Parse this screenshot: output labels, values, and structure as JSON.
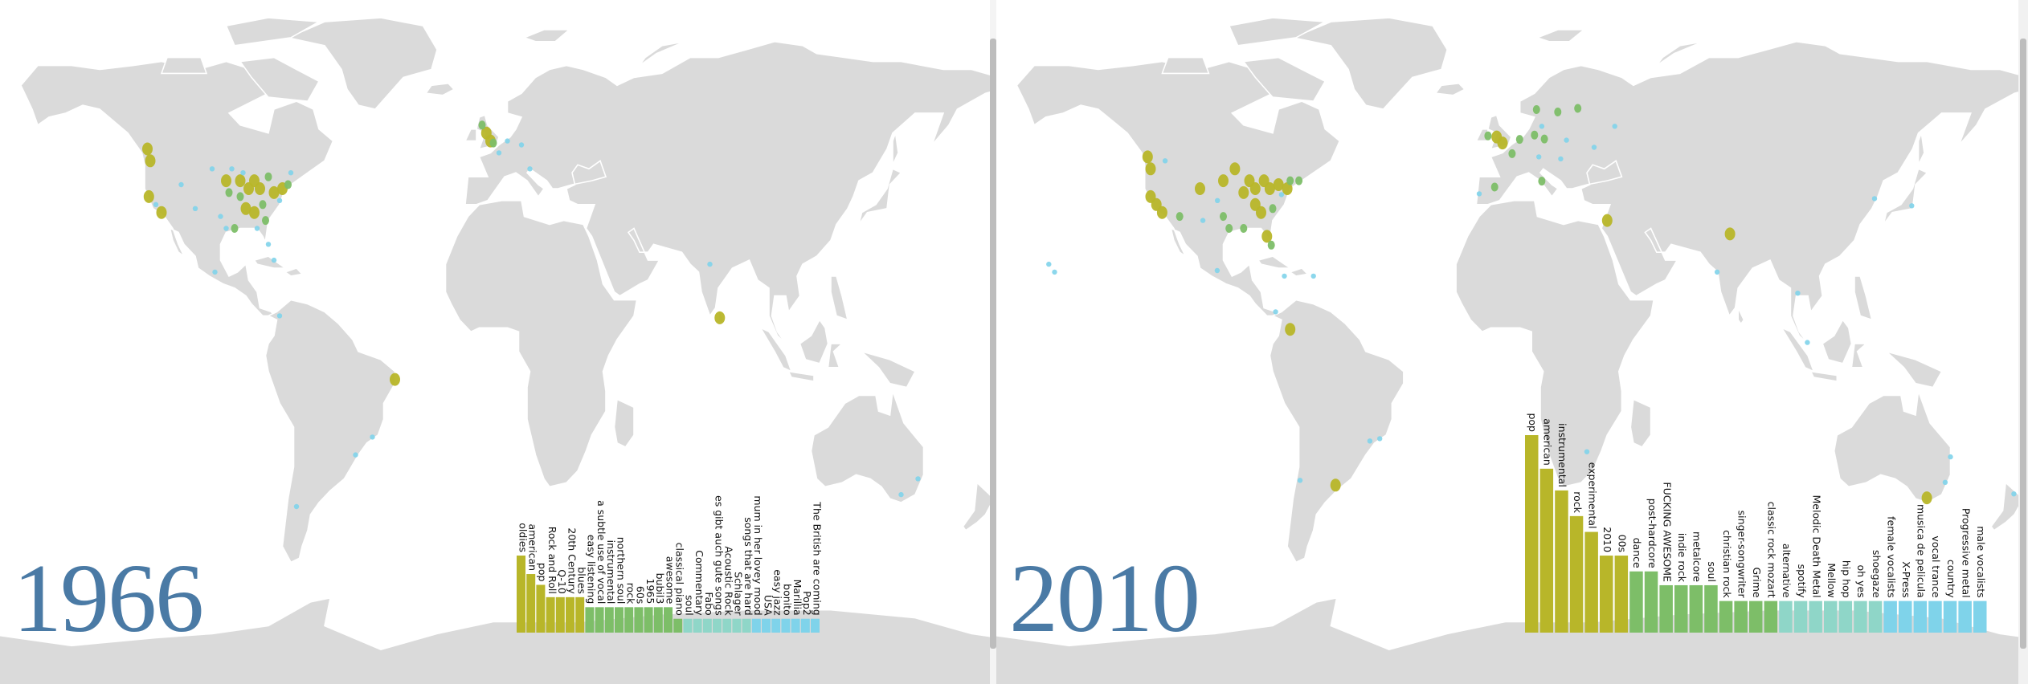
{
  "colors": {
    "land": "#dadada",
    "border": "#ffffff",
    "year": "#4a7aa5",
    "olive": "#b8b629",
    "green": "#7dbe68",
    "teal": "#8fd6c8",
    "cyan": "#7fd3ea"
  },
  "panels": [
    {
      "year": "1966",
      "tags": [
        {
          "label": "oldies",
          "value": 10
        },
        {
          "label": "american",
          "value": 7.6
        },
        {
          "label": "pop",
          "value": 6.2
        },
        {
          "label": "Rock and Roll",
          "value": 4.6
        },
        {
          "label": "Q-10",
          "value": 4.6
        },
        {
          "label": "20th Century",
          "value": 4.6
        },
        {
          "label": "blues",
          "value": 4.6
        },
        {
          "label": "easy listening",
          "value": 3.3
        },
        {
          "label": "a subtle use of vocal",
          "value": 3.3
        },
        {
          "label": "instrumental",
          "value": 3.3
        },
        {
          "label": "northern soul",
          "value": 3.3
        },
        {
          "label": "rock",
          "value": 3.3
        },
        {
          "label": "60s",
          "value": 3.3
        },
        {
          "label": "1965",
          "value": 3.3
        },
        {
          "label": "bubil3",
          "value": 3.3
        },
        {
          "label": "awesome",
          "value": 3.3
        },
        {
          "label": "classical piano",
          "value": 1.8
        },
        {
          "label": "soul",
          "value": 1.8
        },
        {
          "label": "Commentary",
          "value": 1.8
        },
        {
          "label": "Fabo",
          "value": 1.8
        },
        {
          "label": "es gibt auch gute songs",
          "value": 1.8
        },
        {
          "label": "Acoustic Rock",
          "value": 1.8
        },
        {
          "label": "Schlager",
          "value": 1.8
        },
        {
          "label": "songs that are hard",
          "value": 1.8
        },
        {
          "label": "mum in her lovey mood",
          "value": 1.8
        },
        {
          "label": "USA",
          "value": 1.8
        },
        {
          "label": "easy jazz",
          "value": 1.8
        },
        {
          "label": "bonito",
          "value": 1.8
        },
        {
          "label": "Marillia",
          "value": 1.8
        },
        {
          "label": "Pop2",
          "value": 1.8
        },
        {
          "label": "The British are coming",
          "value": 1.8
        }
      ],
      "markers": [
        {
          "lon": -123,
          "lat": 50,
          "size": "l"
        },
        {
          "lon": -122,
          "lat": 47,
          "size": "l"
        },
        {
          "lon": -122.5,
          "lat": 38,
          "size": "l"
        },
        {
          "lon": -118,
          "lat": 34,
          "size": "l"
        },
        {
          "lon": -120,
          "lat": 36,
          "size": "s"
        },
        {
          "lon": -95,
          "lat": 42,
          "size": "l"
        },
        {
          "lon": -94,
          "lat": 39,
          "size": "m"
        },
        {
          "lon": -90,
          "lat": 42,
          "size": "l"
        },
        {
          "lon": -87,
          "lat": 40,
          "size": "l"
        },
        {
          "lon": -85,
          "lat": 42,
          "size": "l"
        },
        {
          "lon": -83,
          "lat": 40,
          "size": "l"
        },
        {
          "lon": -80,
          "lat": 43,
          "size": "m"
        },
        {
          "lon": -78,
          "lat": 39,
          "size": "l"
        },
        {
          "lon": -75,
          "lat": 40,
          "size": "l"
        },
        {
          "lon": -73,
          "lat": 41,
          "size": "m"
        },
        {
          "lon": -88,
          "lat": 35,
          "size": "l"
        },
        {
          "lon": -85,
          "lat": 34,
          "size": "l"
        },
        {
          "lon": -92,
          "lat": 30,
          "size": "m"
        },
        {
          "lon": -81,
          "lat": 32,
          "size": "m"
        },
        {
          "lon": -90,
          "lat": 38,
          "size": "m"
        },
        {
          "lon": -97,
          "lat": 33,
          "size": "s"
        },
        {
          "lon": -106,
          "lat": 35,
          "size": "s"
        },
        {
          "lon": -100,
          "lat": 45,
          "size": "s"
        },
        {
          "lon": -82,
          "lat": 36,
          "size": "m"
        },
        {
          "lon": -95,
          "lat": 30,
          "size": "s"
        },
        {
          "lon": -89,
          "lat": 44,
          "size": "s"
        },
        {
          "lon": -76,
          "lat": 37,
          "size": "s"
        },
        {
          "lon": -72,
          "lat": 44,
          "size": "s"
        },
        {
          "lon": -84,
          "lat": 30,
          "size": "s"
        },
        {
          "lon": -80,
          "lat": 26,
          "size": "s"
        },
        {
          "lon": -93,
          "lat": 45,
          "size": "s"
        },
        {
          "lon": -111,
          "lat": 41,
          "size": "s"
        },
        {
          "lon": -78,
          "lat": 22,
          "size": "s"
        },
        {
          "lon": -99,
          "lat": 19,
          "size": "s"
        },
        {
          "lon": -2.5,
          "lat": 54,
          "size": "l"
        },
        {
          "lon": -1,
          "lat": 52,
          "size": "l"
        },
        {
          "lon": 0,
          "lat": 51.5,
          "size": "m"
        },
        {
          "lon": -4,
          "lat": 56,
          "size": "m"
        },
        {
          "lon": 2,
          "lat": 49,
          "size": "s"
        },
        {
          "lon": 5,
          "lat": 52,
          "size": "s"
        },
        {
          "lon": 10,
          "lat": 51,
          "size": "s"
        },
        {
          "lon": 13,
          "lat": 45,
          "size": "s"
        },
        {
          "lon": 80.5,
          "lat": 7.5,
          "size": "l"
        },
        {
          "lon": 77,
          "lat": 21,
          "size": "s"
        },
        {
          "lon": -35,
          "lat": -8,
          "size": "l"
        },
        {
          "lon": -43,
          "lat": -22.5,
          "size": "s"
        },
        {
          "lon": -49,
          "lat": -27,
          "size": "s"
        },
        {
          "lon": -70,
          "lat": -40,
          "size": "s"
        },
        {
          "lon": -76,
          "lat": 8,
          "size": "s"
        },
        {
          "lon": 151,
          "lat": -33,
          "size": "s"
        },
        {
          "lon": 145,
          "lat": -37,
          "size": "s"
        }
      ]
    },
    {
      "year": "2010",
      "tags": [
        {
          "label": "pop",
          "value": 10
        },
        {
          "label": "american",
          "value": 8.3
        },
        {
          "label": "instrumental",
          "value": 7.2
        },
        {
          "label": "rock",
          "value": 5.9
        },
        {
          "label": "experimental",
          "value": 5.1
        },
        {
          "label": "2010",
          "value": 3.9
        },
        {
          "label": "00s",
          "value": 3.9
        },
        {
          "label": "dance",
          "value": 3.1
        },
        {
          "label": "post-hardcore",
          "value": 3.1
        },
        {
          "label": "FUCKING AWESOME",
          "value": 2.4
        },
        {
          "label": "indie rock",
          "value": 2.4
        },
        {
          "label": "metalcore",
          "value": 2.4
        },
        {
          "label": "soul",
          "value": 2.4
        },
        {
          "label": "christian rock",
          "value": 1.6
        },
        {
          "label": "singer-songwriter",
          "value": 1.6
        },
        {
          "label": "Grime",
          "value": 1.6
        },
        {
          "label": "classic rock mozart",
          "value": 1.6
        },
        {
          "label": "alternative",
          "value": 1.6
        },
        {
          "label": "spotify",
          "value": 1.6
        },
        {
          "label": "Melodic Death Metal",
          "value": 1.6
        },
        {
          "label": "Mellow",
          "value": 1.6
        },
        {
          "label": "hip hop",
          "value": 1.6
        },
        {
          "label": "oh yes",
          "value": 1.6
        },
        {
          "label": "shoegaze",
          "value": 1.6
        },
        {
          "label": "female vocalists",
          "value": 1.6
        },
        {
          "label": "X-Press",
          "value": 1.6
        },
        {
          "label": "musica de pelicula",
          "value": 1.6
        },
        {
          "label": "vocal trance",
          "value": 1.6
        },
        {
          "label": "country",
          "value": 1.6
        },
        {
          "label": "Progressive metal",
          "value": 1.6
        },
        {
          "label": "male vocalists",
          "value": 1.6
        }
      ],
      "markers": [
        {
          "lon": -123,
          "lat": 48,
          "size": "l"
        },
        {
          "lon": -122,
          "lat": 45,
          "size": "l"
        },
        {
          "lon": -122,
          "lat": 38,
          "size": "l"
        },
        {
          "lon": -120,
          "lat": 36,
          "size": "l"
        },
        {
          "lon": -118,
          "lat": 34,
          "size": "l"
        },
        {
          "lon": -112,
          "lat": 33,
          "size": "m"
        },
        {
          "lon": -105,
          "lat": 40,
          "size": "l"
        },
        {
          "lon": -97,
          "lat": 42,
          "size": "l"
        },
        {
          "lon": -93,
          "lat": 45,
          "size": "l"
        },
        {
          "lon": -90,
          "lat": 39,
          "size": "l"
        },
        {
          "lon": -88,
          "lat": 42,
          "size": "l"
        },
        {
          "lon": -86,
          "lat": 40,
          "size": "l"
        },
        {
          "lon": -83,
          "lat": 42,
          "size": "l"
        },
        {
          "lon": -81,
          "lat": 40,
          "size": "l"
        },
        {
          "lon": -78,
          "lat": 41,
          "size": "l"
        },
        {
          "lon": -75,
          "lat": 40,
          "size": "l"
        },
        {
          "lon": -74,
          "lat": 42,
          "size": "m"
        },
        {
          "lon": -71,
          "lat": 42,
          "size": "m"
        },
        {
          "lon": -86,
          "lat": 36,
          "size": "l"
        },
        {
          "lon": -84,
          "lat": 34,
          "size": "l"
        },
        {
          "lon": -80,
          "lat": 35,
          "size": "m"
        },
        {
          "lon": -90,
          "lat": 30,
          "size": "m"
        },
        {
          "lon": -95,
          "lat": 30,
          "size": "m"
        },
        {
          "lon": -97,
          "lat": 33,
          "size": "m"
        },
        {
          "lon": -82,
          "lat": 28,
          "size": "l"
        },
        {
          "lon": -80.5,
          "lat": 25.8,
          "size": "m"
        },
        {
          "lon": -99,
          "lat": 37,
          "size": "s"
        },
        {
          "lon": -77,
          "lat": 38.5,
          "size": "s"
        },
        {
          "lon": -104,
          "lat": 32,
          "size": "s"
        },
        {
          "lon": -117,
          "lat": 47,
          "size": "s"
        },
        {
          "lon": -66,
          "lat": 18,
          "size": "s"
        },
        {
          "lon": -76,
          "lat": 18,
          "size": "s"
        },
        {
          "lon": -79,
          "lat": 9,
          "size": "s"
        },
        {
          "lon": -157,
          "lat": 21,
          "size": "s"
        },
        {
          "lon": -155,
          "lat": 19,
          "size": "s"
        },
        {
          "lon": -74,
          "lat": 4.6,
          "size": "l"
        },
        {
          "lon": -58.4,
          "lat": -34.6,
          "size": "l"
        },
        {
          "lon": -3,
          "lat": 53,
          "size": "l"
        },
        {
          "lon": -1,
          "lat": 51.5,
          "size": "l"
        },
        {
          "lon": -6,
          "lat": 53.3,
          "size": "m"
        },
        {
          "lon": 2.3,
          "lat": 48.8,
          "size": "m"
        },
        {
          "lon": 4.9,
          "lat": 52.4,
          "size": "m"
        },
        {
          "lon": 10,
          "lat": 53.5,
          "size": "m"
        },
        {
          "lon": 13.4,
          "lat": 52.5,
          "size": "m"
        },
        {
          "lon": 11.5,
          "lat": 48,
          "size": "s"
        },
        {
          "lon": 18,
          "lat": 59.3,
          "size": "m"
        },
        {
          "lon": 10.7,
          "lat": 59.9,
          "size": "m"
        },
        {
          "lon": 12.5,
          "lat": 55.7,
          "size": "s"
        },
        {
          "lon": 24.9,
          "lat": 60.2,
          "size": "m"
        },
        {
          "lon": 12.5,
          "lat": 41.9,
          "size": "m"
        },
        {
          "lon": -3.7,
          "lat": 40.4,
          "size": "m"
        },
        {
          "lon": -9,
          "lat": 38.7,
          "size": "s"
        },
        {
          "lon": 21,
          "lat": 52.2,
          "size": "s"
        },
        {
          "lon": 19,
          "lat": 47.5,
          "size": "s"
        },
        {
          "lon": 37.6,
          "lat": 55.7,
          "size": "s"
        },
        {
          "lon": 30.5,
          "lat": 50.4,
          "size": "s"
        },
        {
          "lon": 35,
          "lat": 32,
          "size": "l"
        },
        {
          "lon": 77.2,
          "lat": 28.6,
          "size": "l"
        },
        {
          "lon": 72.8,
          "lat": 19,
          "size": "s"
        },
        {
          "lon": 103.8,
          "lat": 1.3,
          "size": "s"
        },
        {
          "lon": 100.5,
          "lat": 13.7,
          "size": "s"
        },
        {
          "lon": 139.7,
          "lat": 35.7,
          "size": "s"
        },
        {
          "lon": 126.9,
          "lat": 37.5,
          "size": "s"
        },
        {
          "lon": 144.9,
          "lat": -37.8,
          "size": "l"
        },
        {
          "lon": 151.2,
          "lat": -33.9,
          "size": "s"
        },
        {
          "lon": 153,
          "lat": -27.5,
          "size": "s"
        },
        {
          "lon": 174.8,
          "lat": -36.8,
          "size": "s"
        },
        {
          "lon": 28,
          "lat": -26.2,
          "size": "s"
        },
        {
          "lon": -46.6,
          "lat": -23.5,
          "size": "s"
        },
        {
          "lon": -43.2,
          "lat": -22.9,
          "size": "s"
        },
        {
          "lon": -70.6,
          "lat": -33.4,
          "size": "s"
        },
        {
          "lon": -99.1,
          "lat": 19.4,
          "size": "s"
        }
      ]
    }
  ]
}
